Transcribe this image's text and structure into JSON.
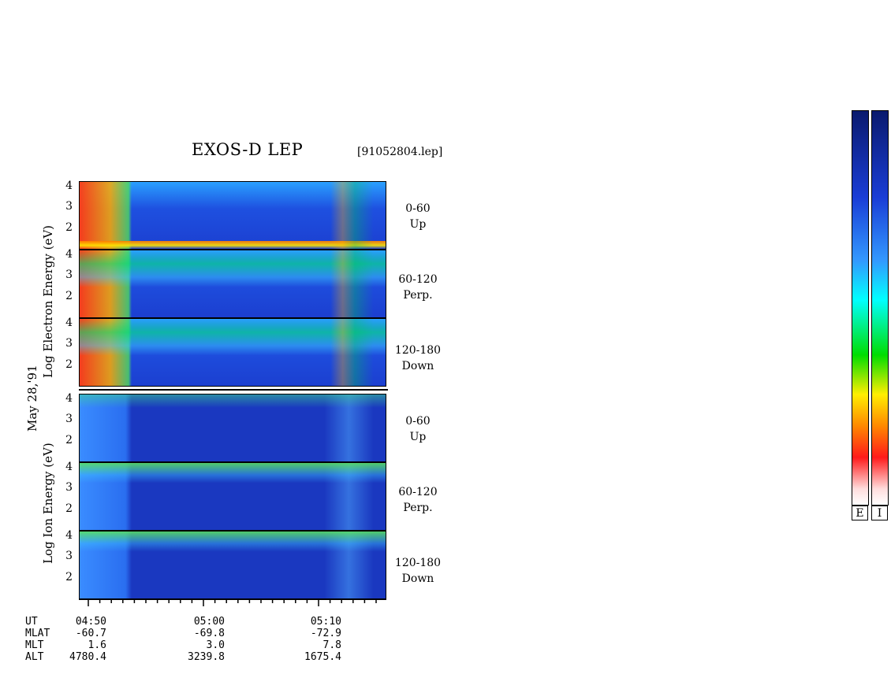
{
  "header": {
    "title": "EXOS-D LEP",
    "file": "[91052804.lep]"
  },
  "date_label": "May 28,'91",
  "electron_axis": [
    "Log",
    "Electron",
    "Energy",
    "(eV)"
  ],
  "ion_axis": [
    "Log",
    "Ion",
    "Energy",
    "(eV)"
  ],
  "energy_ticks": [
    "4",
    "3",
    "2"
  ],
  "panels": [
    {
      "species": "electron",
      "range": "0-60",
      "dir": "Up"
    },
    {
      "species": "electron",
      "range": "60-120",
      "dir": "Perp."
    },
    {
      "species": "electron",
      "range": "120-180",
      "dir": "Down"
    },
    {
      "species": "ion",
      "range": "0-60",
      "dir": "Up"
    },
    {
      "species": "ion",
      "range": "60-120",
      "dir": "Perp."
    },
    {
      "species": "ion",
      "range": "120-180",
      "dir": "Down"
    }
  ],
  "orbit": {
    "row_labels": [
      "UT",
      "MLAT",
      "MLT",
      "ALT"
    ],
    "columns": [
      {
        "UT": "04:50",
        "MLAT": "-60.7",
        "MLT": "1.6",
        "ALT": "4780.4"
      },
      {
        "UT": "05:00",
        "MLAT": "-69.8",
        "MLT": "3.0",
        "ALT": "3239.8"
      },
      {
        "UT": "05:10",
        "MLAT": "-72.9",
        "MLT": "7.8",
        "ALT": "1675.4"
      }
    ]
  },
  "colorbars": {
    "labels": [
      "E",
      "I"
    ]
  },
  "chart_data": {
    "type": "heatmap",
    "title": "EXOS-D LEP",
    "x_axis": {
      "label": "UT",
      "ticks": [
        "04:50",
        "05:00",
        "05:10"
      ]
    },
    "y_axis": {
      "label": "Log Energy (eV)",
      "ticks": [
        2,
        3,
        4
      ]
    },
    "panels": [
      {
        "species": "Electron",
        "pitch_angle": "0-60",
        "direction": "Up"
      },
      {
        "species": "Electron",
        "pitch_angle": "60-120",
        "direction": "Perp."
      },
      {
        "species": "Electron",
        "pitch_angle": "120-180",
        "direction": "Down"
      },
      {
        "species": "Ion",
        "pitch_angle": "0-60",
        "direction": "Up"
      },
      {
        "species": "Ion",
        "pitch_angle": "60-120",
        "direction": "Perp."
      },
      {
        "species": "Ion",
        "pitch_angle": "120-180",
        "direction": "Down"
      }
    ],
    "colorscale": [
      "#ffffff",
      "#ff1a1a",
      "#ff8800",
      "#ffee00",
      "#00dd00",
      "#00ffff",
      "#3399ff",
      "#1a3dd6",
      "#0a1a6e"
    ]
  }
}
